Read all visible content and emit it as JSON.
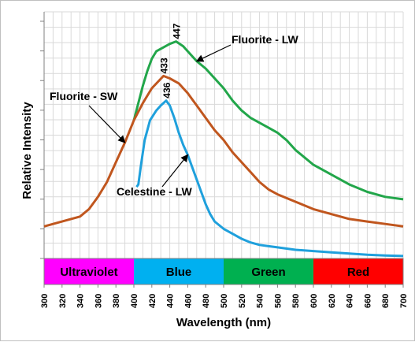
{
  "chart_data": {
    "type": "line",
    "xlabel": "Wavelength (nm)",
    "ylabel": "Relative Intensity",
    "xlim": [
      300,
      700
    ],
    "x_ticks": [
      "300",
      "320",
      "340",
      "360",
      "380",
      "400",
      "420",
      "440",
      "460",
      "480",
      "500",
      "520",
      "540",
      "560",
      "580",
      "600",
      "620",
      "640",
      "660",
      "680",
      "700"
    ],
    "ylim": [
      0,
      1
    ],
    "grid": true,
    "bands": [
      {
        "label": "Ultraviolet",
        "start": 300,
        "end": 400,
        "color": "#ff00ff"
      },
      {
        "label": "Blue",
        "start": 400,
        "end": 500,
        "color": "#00b0f0"
      },
      {
        "label": "Green",
        "start": 500,
        "end": 600,
        "color": "#00b050"
      },
      {
        "label": "Red",
        "start": 600,
        "end": 700,
        "color": "#ff0000"
      }
    ],
    "series": [
      {
        "name": "Fluorite - LW",
        "color": "#22a64a",
        "peak_label": "447",
        "peak_x": 447,
        "points": [
          [
            400,
            0.56
          ],
          [
            405,
            0.63
          ],
          [
            410,
            0.7
          ],
          [
            415,
            0.76
          ],
          [
            420,
            0.81
          ],
          [
            425,
            0.84
          ],
          [
            430,
            0.85
          ],
          [
            435,
            0.86
          ],
          [
            440,
            0.87
          ],
          [
            447,
            0.88
          ],
          [
            455,
            0.86
          ],
          [
            460,
            0.84
          ],
          [
            470,
            0.8
          ],
          [
            480,
            0.77
          ],
          [
            490,
            0.73
          ],
          [
            500,
            0.69
          ],
          [
            510,
            0.64
          ],
          [
            520,
            0.6
          ],
          [
            530,
            0.57
          ],
          [
            540,
            0.55
          ],
          [
            550,
            0.53
          ],
          [
            560,
            0.51
          ],
          [
            570,
            0.48
          ],
          [
            580,
            0.44
          ],
          [
            590,
            0.41
          ],
          [
            600,
            0.38
          ],
          [
            620,
            0.34
          ],
          [
            640,
            0.3
          ],
          [
            660,
            0.27
          ],
          [
            680,
            0.25
          ],
          [
            700,
            0.24
          ]
        ]
      },
      {
        "name": "Fluorite - SW",
        "color": "#c0561e",
        "peak_label": "433",
        "peak_x": 433,
        "points": [
          [
            300,
            0.13
          ],
          [
            310,
            0.14
          ],
          [
            320,
            0.15
          ],
          [
            330,
            0.16
          ],
          [
            340,
            0.17
          ],
          [
            350,
            0.2
          ],
          [
            360,
            0.25
          ],
          [
            370,
            0.31
          ],
          [
            380,
            0.39
          ],
          [
            390,
            0.47
          ],
          [
            400,
            0.56
          ],
          [
            410,
            0.63
          ],
          [
            420,
            0.69
          ],
          [
            433,
            0.74
          ],
          [
            440,
            0.73
          ],
          [
            450,
            0.71
          ],
          [
            460,
            0.67
          ],
          [
            470,
            0.62
          ],
          [
            480,
            0.57
          ],
          [
            490,
            0.52
          ],
          [
            500,
            0.48
          ],
          [
            510,
            0.43
          ],
          [
            520,
            0.39
          ],
          [
            530,
            0.35
          ],
          [
            540,
            0.31
          ],
          [
            550,
            0.28
          ],
          [
            560,
            0.26
          ],
          [
            580,
            0.23
          ],
          [
            600,
            0.2
          ],
          [
            620,
            0.18
          ],
          [
            640,
            0.16
          ],
          [
            660,
            0.15
          ],
          [
            680,
            0.14
          ],
          [
            700,
            0.13
          ]
        ]
      },
      {
        "name": "Celestine - LW",
        "color": "#1fa0dc",
        "peak_label": "436",
        "peak_x": 436,
        "points": [
          [
            403,
            0.29
          ],
          [
            405,
            0.3
          ],
          [
            408,
            0.38
          ],
          [
            412,
            0.48
          ],
          [
            418,
            0.56
          ],
          [
            425,
            0.6
          ],
          [
            430,
            0.62
          ],
          [
            436,
            0.64
          ],
          [
            440,
            0.62
          ],
          [
            445,
            0.57
          ],
          [
            450,
            0.51
          ],
          [
            455,
            0.46
          ],
          [
            460,
            0.42
          ],
          [
            465,
            0.37
          ],
          [
            470,
            0.32
          ],
          [
            475,
            0.27
          ],
          [
            480,
            0.22
          ],
          [
            485,
            0.18
          ],
          [
            490,
            0.15
          ],
          [
            500,
            0.12
          ],
          [
            510,
            0.1
          ],
          [
            520,
            0.08
          ],
          [
            530,
            0.065
          ],
          [
            540,
            0.055
          ],
          [
            550,
            0.05
          ],
          [
            560,
            0.045
          ],
          [
            580,
            0.035
          ],
          [
            600,
            0.03
          ],
          [
            620,
            0.025
          ],
          [
            640,
            0.02
          ],
          [
            660,
            0.015
          ],
          [
            680,
            0.012
          ],
          [
            700,
            0.01
          ]
        ]
      }
    ],
    "annotations": [
      {
        "text": "Fluorite - LW",
        "series": "Fluorite - LW",
        "point_x": 470
      },
      {
        "text": "Fluorite - SW",
        "series": "Fluorite - SW",
        "point_x": 390
      },
      {
        "text": "Celestine - LW",
        "series": "Celestine - LW",
        "point_x": 460
      }
    ]
  }
}
